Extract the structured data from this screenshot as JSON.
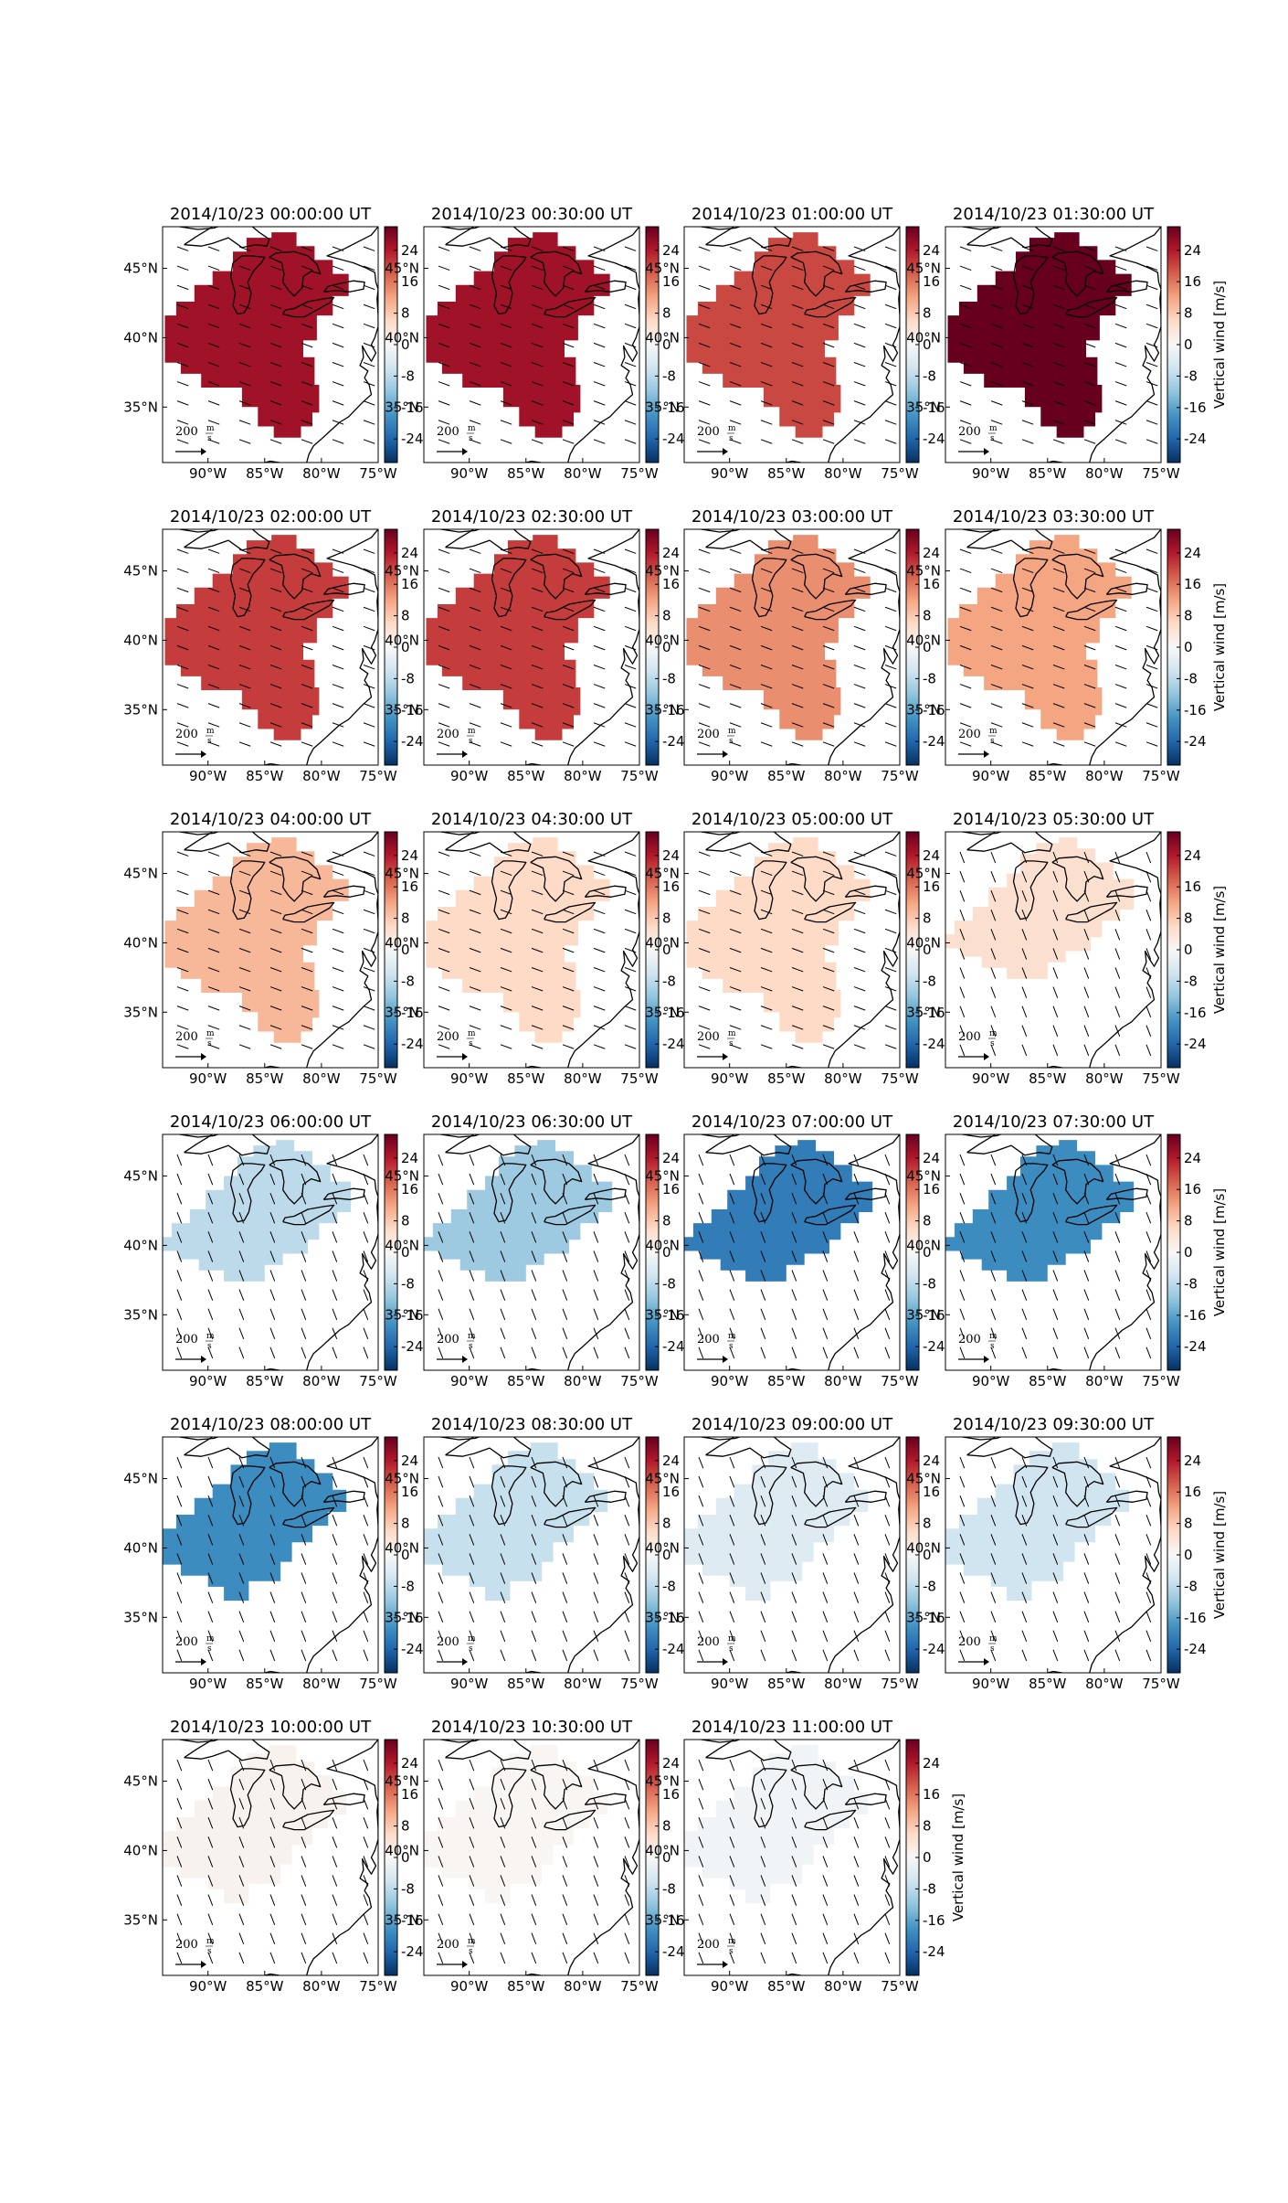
{
  "figure": {
    "colorbar_label": "Vertical wind [m/s]",
    "colorbar_ticks": [
      24,
      16,
      8,
      0,
      -8,
      -16,
      -24
    ],
    "colorbar_range": [
      -30,
      30
    ],
    "colormap": [
      "#053061",
      "#2166ac",
      "#4393c3",
      "#92c5de",
      "#d1e5f0",
      "#f7f7f7",
      "#fddbc7",
      "#f4a582",
      "#d6604d",
      "#b2182b",
      "#67001f"
    ],
    "lon_ticks": [
      "90°W",
      "85°W",
      "80°W",
      "75°W"
    ],
    "lat_ticks": [
      "45°N",
      "40°N",
      "35°N"
    ],
    "scale_arrow": {
      "value": "200",
      "unit_num": "m",
      "unit_den": "s"
    }
  },
  "panels": [
    {
      "title": "2014/10/23 00:00:00 UT",
      "mean_vertical_wind": 25.5,
      "coverage": "full"
    },
    {
      "title": "2014/10/23 00:30:00 UT",
      "mean_vertical_wind": 25.5,
      "coverage": "full"
    },
    {
      "title": "2014/10/23 01:00:00 UT",
      "mean_vertical_wind": 20.0,
      "coverage": "full"
    },
    {
      "title": "2014/10/23 01:30:00 UT",
      "mean_vertical_wind": 32.0,
      "coverage": "full"
    },
    {
      "title": "2014/10/23 02:00:00 UT",
      "mean_vertical_wind": 21.0,
      "coverage": "full"
    },
    {
      "title": "2014/10/23 02:30:00 UT",
      "mean_vertical_wind": 21.0,
      "coverage": "full"
    },
    {
      "title": "2014/10/23 03:00:00 UT",
      "mean_vertical_wind": 14.0,
      "coverage": "full"
    },
    {
      "title": "2014/10/23 03:30:00 UT",
      "mean_vertical_wind": 12.0,
      "coverage": "full"
    },
    {
      "title": "2014/10/23 04:00:00 UT",
      "mean_vertical_wind": 10.0,
      "coverage": "full"
    },
    {
      "title": "2014/10/23 04:30:00 UT",
      "mean_vertical_wind": 6.0,
      "coverage": "full"
    },
    {
      "title": "2014/10/23 05:00:00 UT",
      "mean_vertical_wind": 6.0,
      "coverage": "full"
    },
    {
      "title": "2014/10/23 05:30:00 UT",
      "mean_vertical_wind": 5.0,
      "coverage": "north"
    },
    {
      "title": "2014/10/23 06:00:00 UT",
      "mean_vertical_wind": -8.0,
      "coverage": "north"
    },
    {
      "title": "2014/10/23 06:30:00 UT",
      "mean_vertical_wind": -11.0,
      "coverage": "north"
    },
    {
      "title": "2014/10/23 07:00:00 UT",
      "mean_vertical_wind": -21.0,
      "coverage": "north"
    },
    {
      "title": "2014/10/23 07:30:00 UT",
      "mean_vertical_wind": -19.0,
      "coverage": "north"
    },
    {
      "title": "2014/10/23 08:00:00 UT",
      "mean_vertical_wind": -19.0,
      "coverage": "mid"
    },
    {
      "title": "2014/10/23 08:30:00 UT",
      "mean_vertical_wind": -7.0,
      "coverage": "mid"
    },
    {
      "title": "2014/10/23 09:00:00 UT",
      "mean_vertical_wind": -4.0,
      "coverage": "mid"
    },
    {
      "title": "2014/10/23 09:30:00 UT",
      "mean_vertical_wind": -6.0,
      "coverage": "mid"
    },
    {
      "title": "2014/10/23 10:00:00 UT",
      "mean_vertical_wind": 1.0,
      "coverage": "mid"
    },
    {
      "title": "2014/10/23 10:30:00 UT",
      "mean_vertical_wind": 0.5,
      "coverage": "mid"
    },
    {
      "title": "2014/10/23 11:00:00 UT",
      "mean_vertical_wind": -1.0,
      "coverage": "mid"
    }
  ]
}
